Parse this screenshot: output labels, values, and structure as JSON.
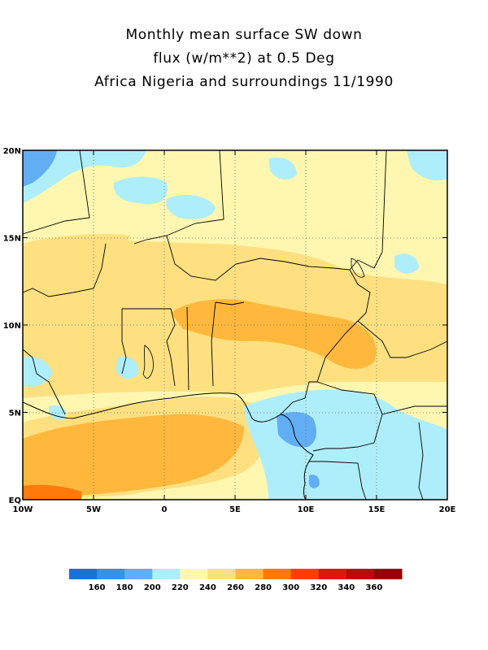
{
  "title": {
    "line1": "Monthly mean surface SW down",
    "line2": "flux (w/m**2) at 0.5 Deg",
    "line3": "Africa Nigeria and surroundings 11/1990"
  },
  "axes": {
    "lon_range": [
      -10,
      20
    ],
    "lat_range": [
      0,
      20
    ],
    "lon_ticks": [
      {
        "value": -10,
        "label": "10W"
      },
      {
        "value": -5,
        "label": "5W"
      },
      {
        "value": 0,
        "label": "0"
      },
      {
        "value": 5,
        "label": "5E"
      },
      {
        "value": 10,
        "label": "10E"
      },
      {
        "value": 15,
        "label": "15E"
      },
      {
        "value": 20,
        "label": "20E"
      }
    ],
    "lat_ticks": [
      {
        "value": 0,
        "label": "EQ"
      },
      {
        "value": 5,
        "label": "5N"
      },
      {
        "value": 10,
        "label": "10N"
      },
      {
        "value": 15,
        "label": "15N"
      },
      {
        "value": 20,
        "label": "20N"
      }
    ],
    "gridlines": "dotted"
  },
  "colorbar": {
    "colors": [
      "#1e6fd9",
      "#3a8ef0",
      "#62aef5",
      "#aeeefa",
      "#fff7b0",
      "#ffe080",
      "#ffb83c",
      "#ff7a0a",
      "#ff3c0a",
      "#e0160a",
      "#c00808",
      "#980000"
    ],
    "labels": [
      "160",
      "180",
      "200",
      "220",
      "240",
      "260",
      "280",
      "300",
      "320",
      "340",
      "360"
    ]
  }
}
